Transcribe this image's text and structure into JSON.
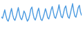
{
  "chart_data": {
    "type": "line",
    "color": "#4a9ae0",
    "tick_labels": false,
    "grid": false,
    "x": [
      1,
      2,
      3,
      4,
      5,
      6,
      7,
      8,
      9,
      10,
      11,
      12,
      13,
      14,
      15,
      16,
      17,
      18,
      19,
      20,
      21,
      22,
      23,
      24,
      25,
      26,
      27,
      28,
      29,
      30,
      31,
      32,
      33,
      34,
      35,
      36,
      37,
      38,
      39,
      40,
      41,
      42,
      43,
      44,
      45,
      46,
      47,
      48,
      49,
      50,
      51,
      52,
      53,
      54,
      55,
      56,
      57,
      58,
      59,
      60,
      61,
      62,
      63,
      64,
      65,
      66,
      67,
      68,
      69,
      70,
      71,
      72
    ],
    "xlim": [
      1,
      72
    ],
    "values": [
      45,
      40,
      55,
      70,
      50,
      35,
      30,
      42,
      60,
      75,
      52,
      38,
      33,
      45,
      62,
      78,
      55,
      40,
      35,
      48,
      66,
      58,
      42,
      30,
      36,
      50,
      72,
      80,
      56,
      40,
      34,
      46,
      64,
      76,
      52,
      36,
      32,
      44,
      58,
      74,
      60,
      42,
      38,
      52,
      70,
      82,
      62,
      44,
      40,
      55,
      68,
      88,
      64,
      46,
      42,
      58,
      76,
      84,
      60,
      45,
      40,
      56,
      74,
      92,
      66,
      48,
      44,
      60,
      78,
      86,
      62,
      50
    ],
    "ylim": [
      0,
      100
    ]
  }
}
